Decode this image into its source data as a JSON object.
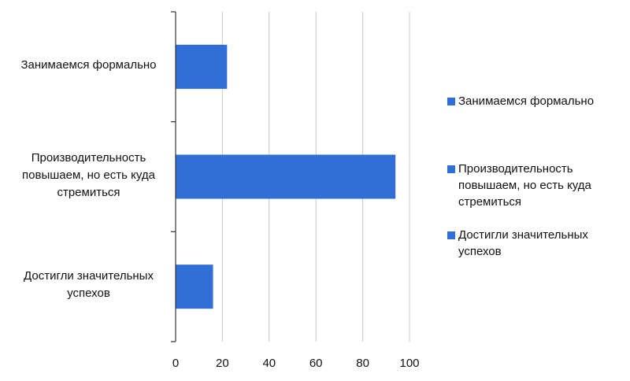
{
  "chart_data": {
    "type": "bar",
    "orientation": "horizontal",
    "categories": [
      "Занимаемся формально",
      "Производительность повышаем, но есть куда стремиться",
      "Достигли значительных успехов"
    ],
    "category_lines": [
      [
        "Занимаемся формально"
      ],
      [
        "Производительность",
        "повышаем, но есть куда",
        "стремиться"
      ],
      [
        "Достигли значительных",
        "успехов"
      ]
    ],
    "values": [
      22,
      94,
      16
    ],
    "xlim": [
      0,
      100
    ],
    "xticks": [
      "0",
      "20",
      "40",
      "60",
      "80",
      "100"
    ],
    "grid": true,
    "legend_position": "right",
    "bar_color": "#2f6fd6",
    "title": "",
    "xlabel": "",
    "ylabel": ""
  }
}
